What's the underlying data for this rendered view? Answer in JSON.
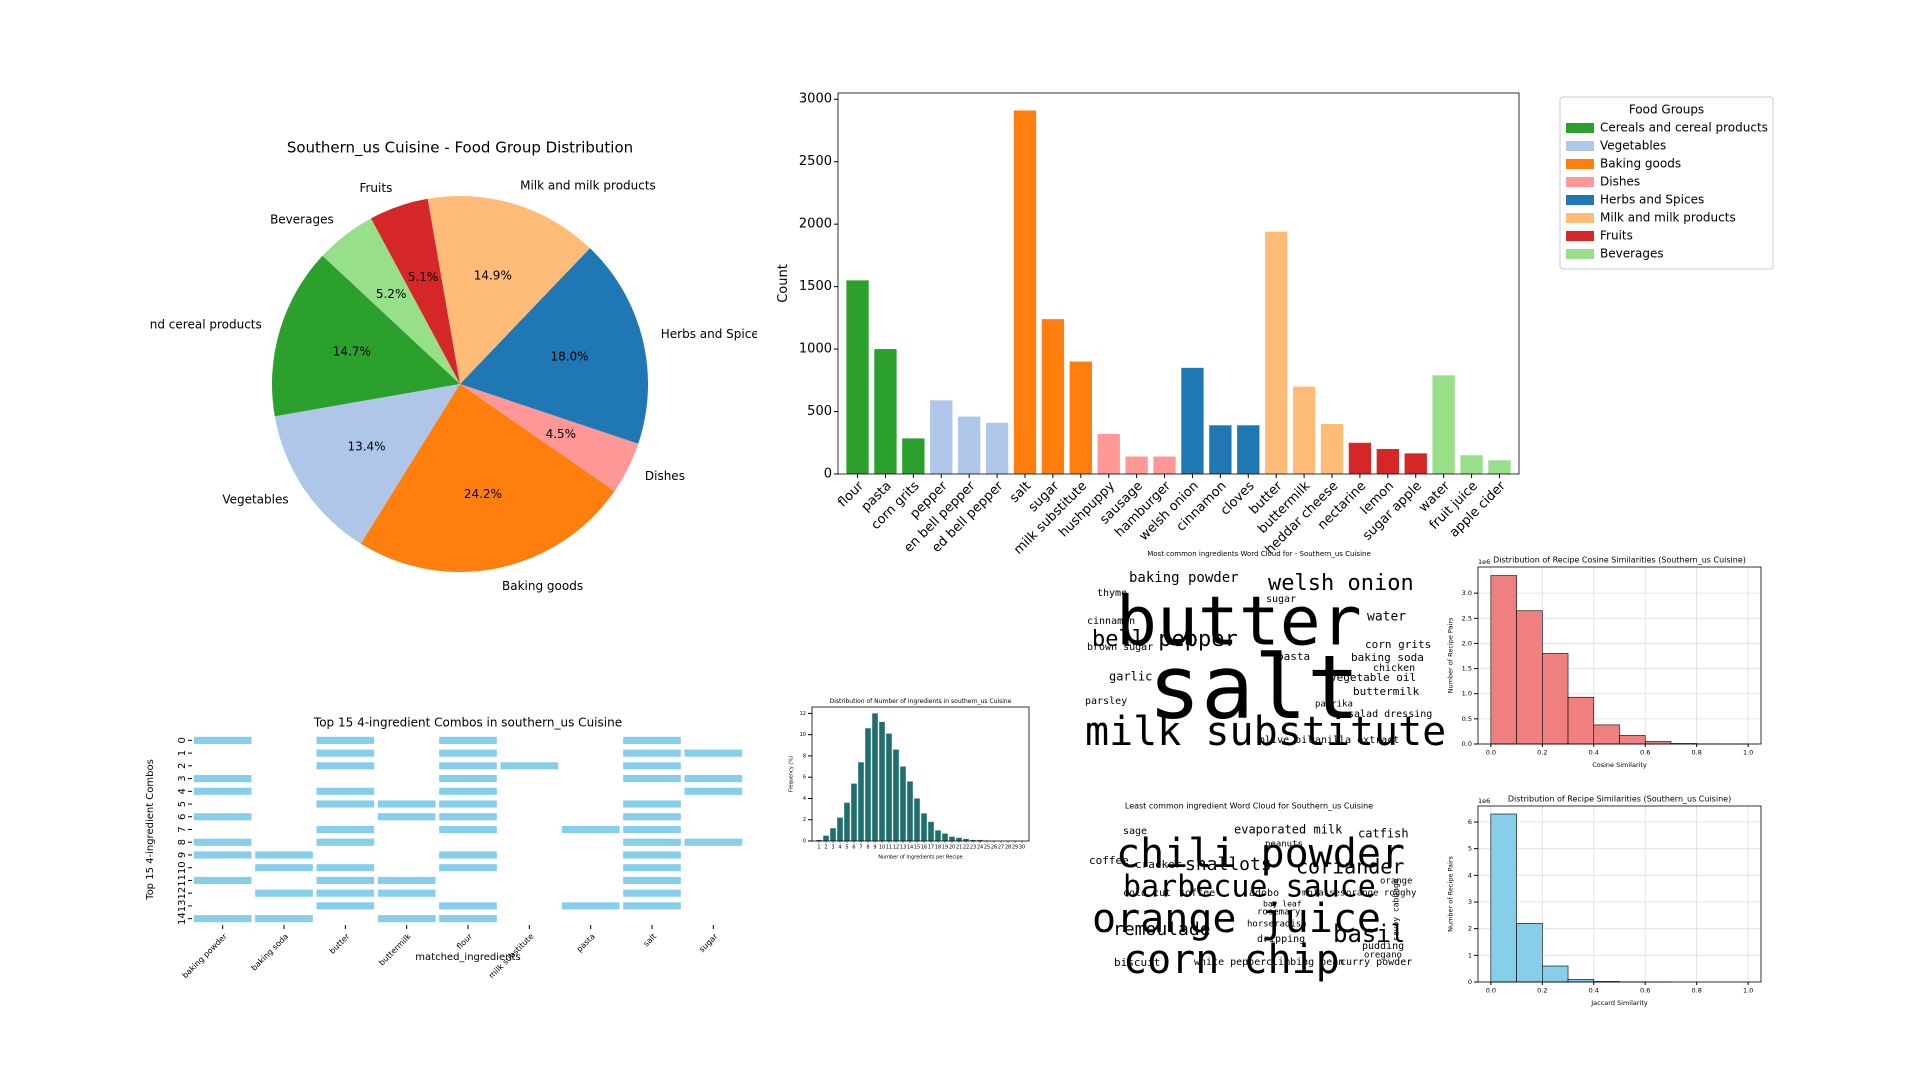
{
  "chart_data": [
    {
      "type": "pie",
      "title": "Southern_us Cuisine - Food Group Distribution",
      "startangle": 137,
      "categories": [
        "Cereals and cereal products",
        "Vegetables",
        "Baking goods",
        "Dishes",
        "Herbs and Spices",
        "Milk and milk products",
        "Fruits",
        "Beverages"
      ],
      "values": [
        14.7,
        13.4,
        24.2,
        4.5,
        18.0,
        14.9,
        5.1,
        5.2
      ],
      "value_labels": [
        "14.7%",
        "13.4%",
        "24.2%",
        "4.5%",
        "18.0%",
        "14.9%",
        "5.1%",
        "5.2%"
      ],
      "colors": [
        "#2ca02c",
        "#aec7e8",
        "#ff7f0e",
        "#ff9896",
        "#1f77b4",
        "#ffbb78",
        "#d62728",
        "#98df8a"
      ]
    },
    {
      "type": "bar",
      "ylabel": "Count",
      "categories": [
        "flour",
        "pasta",
        "corn grits",
        "pepper",
        "en bell pepper",
        "ed bell pepper",
        "salt",
        "sugar",
        "milk substitute",
        "hushpuppy",
        "sausage",
        "hamburger",
        "welsh onion",
        "cinnamon",
        "cloves",
        "butter",
        "buttermilk",
        "heddar cheese",
        "nectarine",
        "lemon",
        "sugar apple",
        "water",
        "fruit juice",
        "apple cider"
      ],
      "values": [
        1550,
        1000,
        285,
        590,
        460,
        410,
        2910,
        1240,
        900,
        320,
        140,
        140,
        850,
        390,
        390,
        1940,
        700,
        400,
        250,
        200,
        165,
        790,
        150,
        110
      ],
      "colors": [
        "#2ca02c",
        "#2ca02c",
        "#2ca02c",
        "#aec7e8",
        "#aec7e8",
        "#aec7e8",
        "#ff7f0e",
        "#ff7f0e",
        "#ff7f0e",
        "#ff9896",
        "#ff9896",
        "#ff9896",
        "#1f77b4",
        "#1f77b4",
        "#1f77b4",
        "#ffbb78",
        "#ffbb78",
        "#ffbb78",
        "#d62728",
        "#d62728",
        "#d62728",
        "#98df8a",
        "#98df8a",
        "#98df8a"
      ],
      "ylim": [
        0,
        3050
      ],
      "yticks": [
        0,
        500,
        1000,
        1500,
        2000,
        2500,
        3000
      ],
      "legend": {
        "title": "Food Groups",
        "labels": [
          "Cereals and cereal products",
          "Vegetables",
          "Baking goods",
          "Dishes",
          "Herbs and Spices",
          "Milk and milk products",
          "Fruits",
          "Beverages"
        ],
        "colors": [
          "#2ca02c",
          "#aec7e8",
          "#ff7f0e",
          "#ff9896",
          "#1f77b4",
          "#ffbb78",
          "#d62728",
          "#98df8a"
        ],
        "corner": "outside right"
      }
    },
    {
      "type": "matrix",
      "title": "Top 15 4-ingredient Combos in southern_us Cuisine",
      "xlabel": "matched_ingredients",
      "ylabel": "Top 15 4-ingredient Combos",
      "categories": [
        "baking powder",
        "baking soda",
        "butter",
        "buttermilk",
        "flour",
        "milk substitute",
        "pasta",
        "salt",
        "sugar"
      ],
      "rows": [
        "0",
        "1",
        "2",
        "3",
        "4",
        "5",
        "6",
        "7",
        "8",
        "9",
        "10",
        "11",
        "12",
        "13",
        "14"
      ],
      "values": [
        [
          1,
          0,
          1,
          0,
          1,
          0,
          0,
          1,
          0
        ],
        [
          0,
          0,
          1,
          0,
          1,
          0,
          0,
          1,
          1
        ],
        [
          0,
          0,
          1,
          0,
          1,
          1,
          0,
          1,
          0
        ],
        [
          1,
          0,
          0,
          0,
          1,
          0,
          0,
          1,
          1
        ],
        [
          1,
          0,
          1,
          0,
          1,
          0,
          0,
          0,
          1
        ],
        [
          0,
          0,
          1,
          1,
          1,
          0,
          0,
          1,
          0
        ],
        [
          1,
          0,
          0,
          1,
          1,
          0,
          0,
          1,
          0
        ],
        [
          0,
          0,
          1,
          0,
          1,
          0,
          1,
          1,
          0
        ],
        [
          1,
          0,
          1,
          0,
          0,
          0,
          0,
          1,
          1
        ],
        [
          1,
          1,
          0,
          0,
          1,
          0,
          0,
          1,
          0
        ],
        [
          0,
          1,
          1,
          0,
          1,
          0,
          0,
          1,
          0
        ],
        [
          1,
          0,
          1,
          1,
          0,
          0,
          0,
          1,
          0
        ],
        [
          0,
          1,
          1,
          1,
          0,
          0,
          0,
          1,
          0
        ],
        [
          0,
          0,
          1,
          0,
          1,
          0,
          1,
          1,
          0
        ],
        [
          1,
          1,
          0,
          1,
          1,
          0,
          0,
          0,
          0
        ]
      ],
      "color": "#87ceeb"
    },
    {
      "type": "bar",
      "title": "Distribution of Number of Ingredients in southern_us Cuisine",
      "xlabel": "Number of Ingredients per Recipe",
      "ylabel": "Frequency (%)",
      "x": [
        1,
        2,
        3,
        4,
        5,
        6,
        7,
        8,
        9,
        10,
        11,
        12,
        13,
        14,
        15,
        16,
        17,
        18,
        19,
        20,
        21,
        22,
        23,
        24,
        25,
        26,
        27,
        28,
        29,
        30
      ],
      "values": [
        0.1,
        0.5,
        1.2,
        2.2,
        3.6,
        5.4,
        7.4,
        10.6,
        12.0,
        11.2,
        10.1,
        8.6,
        7.0,
        5.6,
        4.0,
        2.6,
        1.8,
        1.0,
        0.7,
        0.4,
        0.3,
        0.2,
        0.1,
        0.1,
        0.05,
        0.02,
        0.02,
        0.02,
        0.02,
        0.02
      ],
      "color": "#1f6f6f",
      "xlim": [
        0,
        31
      ],
      "xticks": [
        1,
        2,
        3,
        4,
        5,
        6,
        7,
        8,
        9,
        10,
        11,
        12,
        13,
        14,
        15,
        16,
        17,
        18,
        19,
        20,
        21,
        22,
        23,
        24,
        25,
        26,
        27,
        28,
        29,
        30
      ],
      "ylim": [
        0,
        12.6
      ],
      "yticks": [
        0,
        2,
        4,
        6,
        8,
        10,
        12
      ]
    },
    {
      "type": "wordcloud",
      "title": "Most common ingredients Word Cloud for - Southern_us Cuisine",
      "words": [
        "butter",
        "salt",
        "milk substitute",
        "welsh onion",
        "bell pepper",
        "baking powder",
        "water",
        "corn grits",
        "baking soda",
        "chicken",
        "vegetable oil",
        "buttermilk",
        "garlic",
        "thyme",
        "cinnamon",
        "brown sugar",
        "pasta",
        "paprika",
        "parsley",
        "salad dressing",
        "olive oil",
        "vanilla extract",
        "sugar"
      ],
      "colors": [
        "#ff8c00",
        "#e8200c",
        "#ff8c00",
        "#8b0000",
        "#8b1a1a",
        "#d2691e",
        "#b22222",
        "#8b0000",
        "#cc3300",
        "#b22222",
        "#a0522d",
        "#8b0000",
        "#a0522d",
        "#cd5c5c",
        "#cc3300",
        "#daa520",
        "#8b4513",
        "#cd853f",
        "#daa520",
        "#d2691e",
        "#b8860b",
        "#b8860b",
        "#ff7f50"
      ]
    },
    {
      "type": "wordcloud",
      "title": "Least common ingredient Word Cloud for Southern_us Cuisine",
      "words": [
        "chili powder",
        "barbecue sauce",
        "orange juice",
        "corn chip",
        "basil",
        "coriander",
        "shallots",
        "remoulade",
        "evaporated milk",
        "catfish",
        "sage",
        "coffee",
        "cracker",
        "peanuts",
        "cold cut",
        "toffee",
        "adobo",
        "molasses",
        "orange roughy",
        "orange",
        "horseradish",
        "rosemary",
        "dripping",
        "pudding",
        "bay leaf",
        "oregano",
        "biscuit",
        "white pepper",
        "climbing bean",
        "curry powder",
        "savoy cabbage"
      ],
      "colors": [
        "#14a89a",
        "#18b08c",
        "#1a2fc4",
        "#1f4bd0",
        "#2a3fd8",
        "#12a0a8",
        "#1c6bc0",
        "#20b48a",
        "#1a5ec8",
        "#117a8b",
        "#2ab0a0",
        "#1a5ec8",
        "#1d7a9a",
        "#26a0b0",
        "#1ab090",
        "#2a4fd0",
        "#1d90a0",
        "#1a3fc0",
        "#20a0a0",
        "#1a6fc0",
        "#1d90a0",
        "#18a888",
        "#1a3fc0",
        "#1a8aa0",
        "#1a5ec8",
        "#2a3fd8",
        "#1a5ec8",
        "#18b08c",
        "#1a2fc4",
        "#1a6fc0",
        "#14a89a"
      ]
    },
    {
      "type": "histogram",
      "title": "Distribution of Recipe Cosine Similarities (Southern_us Cuisine)",
      "xlabel": "Cosine Similarity",
      "ylabel": "Number of Recipe Pairs",
      "y_offset_label": "1e6",
      "bins": [
        0,
        0.1,
        0.2,
        0.3,
        0.4,
        0.5,
        0.6,
        0.7,
        0.8,
        0.9,
        1.0
      ],
      "values": [
        3.35,
        2.65,
        1.8,
        0.93,
        0.38,
        0.17,
        0.05,
        0.01,
        0.003,
        0.001
      ],
      "color": "#f08080",
      "grid": true,
      "xlim": [
        -0.05,
        1.05
      ],
      "xticks": [
        {
          "value": 0,
          "label": "0.0"
        },
        0.2,
        0.4,
        0.6,
        0.8,
        {
          "value": 1,
          "label": "1.0"
        }
      ],
      "ylim": [
        0,
        3.52
      ],
      "yticks": [
        {
          "value": 0,
          "label": "0.0"
        },
        0.5,
        {
          "value": 1,
          "label": "1.0"
        },
        1.5,
        {
          "value": 2,
          "label": "2.0"
        },
        2.5,
        {
          "value": 3,
          "label": "3.0"
        }
      ]
    },
    {
      "type": "histogram",
      "title": "Distribution of Recipe Similarities (Southern_us Cuisine)",
      "xlabel": "Jaccard Similarity",
      "ylabel": "Number of Recipe Pairs",
      "y_offset_label": "1e6",
      "bins": [
        0,
        0.1,
        0.2,
        0.3,
        0.4,
        0.5,
        0.6,
        0.7,
        0.8,
        0.9,
        1.0
      ],
      "values": [
        6.3,
        2.2,
        0.6,
        0.1,
        0.02,
        0.005,
        0.001,
        0,
        0,
        0
      ],
      "color": "#87ceeb",
      "grid": true,
      "xlim": [
        -0.05,
        1.05
      ],
      "xticks": [
        {
          "value": 0,
          "label": "0.0"
        },
        0.2,
        0.4,
        0.6,
        0.8,
        {
          "value": 1,
          "label": "1.0"
        }
      ],
      "ylim": [
        0,
        6.6
      ],
      "yticks": [
        0,
        1,
        2,
        3,
        4,
        5,
        6
      ]
    }
  ]
}
